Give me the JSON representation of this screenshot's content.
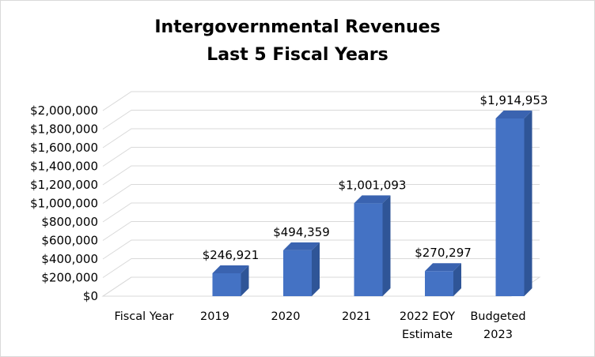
{
  "chart_data": {
    "type": "bar",
    "title": "Intergovernmental Revenues",
    "subtitle": "Last 5 Fiscal Years",
    "categories": [
      [
        "Fiscal Year"
      ],
      [
        "2019"
      ],
      [
        "2020"
      ],
      [
        "2021"
      ],
      [
        "2022 EOY",
        "Estimate"
      ],
      [
        "Budgeted",
        "2023"
      ]
    ],
    "values": [
      null,
      246921,
      494359,
      1001093,
      270297,
      1914953
    ],
    "data_labels": [
      "",
      "$246,921",
      "$494,359",
      "$1,001,093",
      "$270,297",
      "$1,914,953"
    ],
    "yticks": [
      0,
      200000,
      400000,
      600000,
      800000,
      1000000,
      1200000,
      1400000,
      1600000,
      1800000,
      2000000
    ],
    "ytick_labels": [
      "$0",
      "$200,000",
      "$400,000",
      "$600,000",
      "$800,000",
      "$1,000,000",
      "$1,200,000",
      "$1,400,000",
      "$1,600,000",
      "$1,800,000",
      "$2,000,000"
    ],
    "ylim": [
      0,
      2000000
    ],
    "grid": true,
    "colors": {
      "bar_front": "#4472c4",
      "bar_side": "#2f5597",
      "bar_top": "#3a63b0",
      "grid": "#d9d9d9"
    }
  }
}
